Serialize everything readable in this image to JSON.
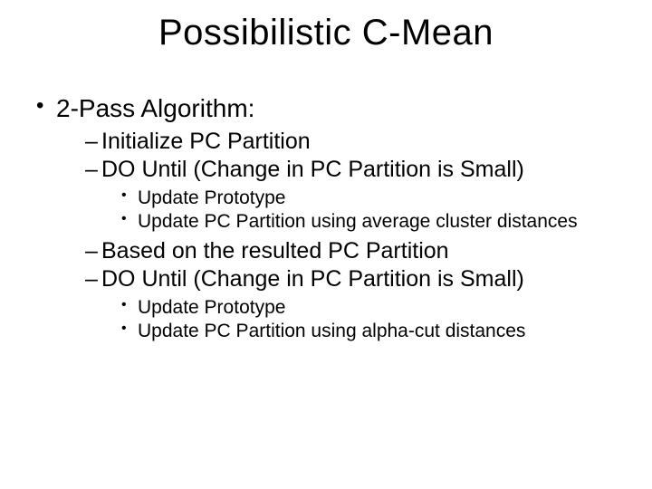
{
  "slide": {
    "title": "Possibilistic C-Mean",
    "title_fontsize": 40,
    "title_color": "#000000",
    "background_color": "#ffffff",
    "body_color": "#000000",
    "lvl1_fontsize": 28,
    "lvl2_fontsize": 25,
    "lvl3_fontsize": 21,
    "bullet_lvl1_char": "•",
    "bullet_lvl2_char": "–",
    "bullet_lvl3_char": "•",
    "items": [
      {
        "text": "2-Pass Algorithm:",
        "children": [
          {
            "text": "Initialize PC Partition"
          },
          {
            "text": "DO Until (Change in PC Partition is Small)",
            "children": [
              {
                "text": "Update Prototype"
              },
              {
                "text": "Update PC Partition using average cluster distances"
              }
            ]
          },
          {
            "text": "Based on the resulted PC Partition"
          },
          {
            "text": "DO Until (Change in PC Partition is Small)",
            "children": [
              {
                "text": "Update Prototype"
              },
              {
                "text": "Update PC Partition using alpha-cut distances"
              }
            ]
          }
        ]
      }
    ]
  }
}
